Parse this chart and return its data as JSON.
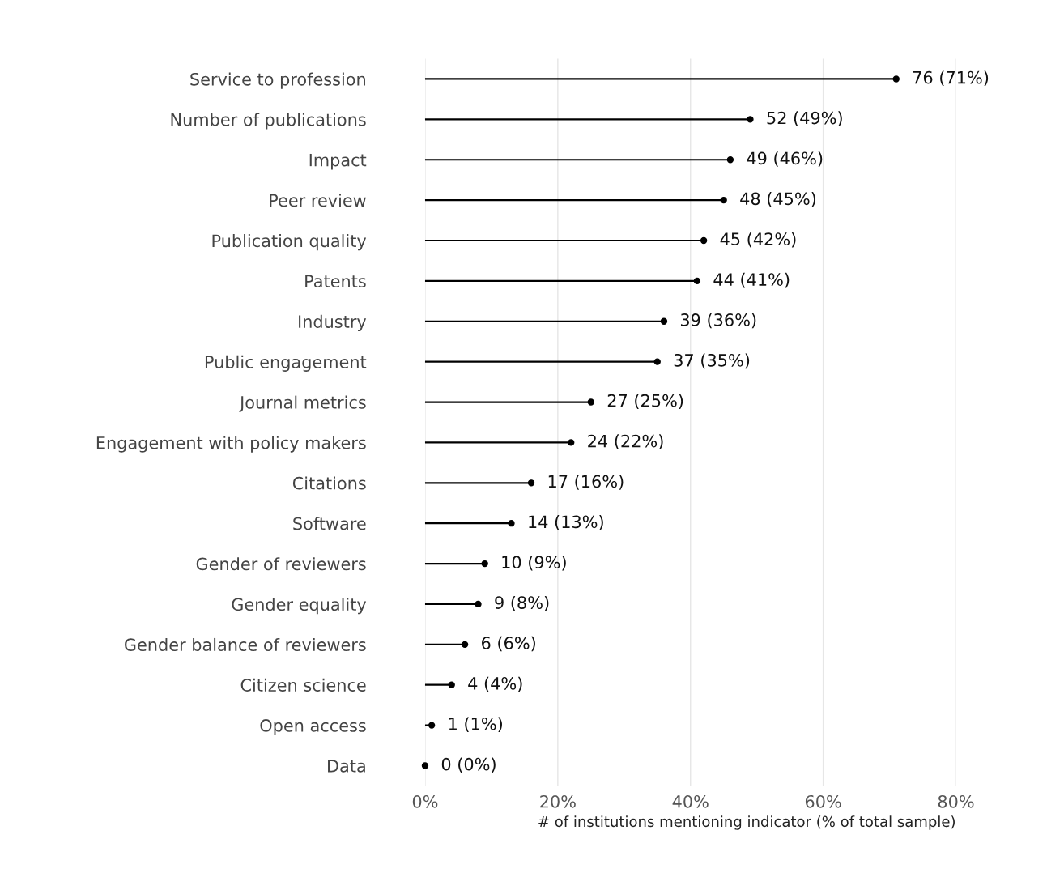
{
  "chart_data": {
    "type": "lollipop",
    "orientation": "horizontal",
    "xlabel": "# of institutions mentioning indicator (% of total sample)",
    "categories": [
      "Service to profession",
      "Number of publications",
      "Impact",
      "Peer review",
      "Publication quality",
      "Patents",
      "Industry",
      "Public engagement",
      "Journal metrics",
      "Engagement with policy makers",
      "Citations",
      "Software",
      "Gender of reviewers",
      "Gender equality",
      "Gender balance of reviewers",
      "Citizen science",
      "Open access",
      "Data"
    ],
    "values": [
      71,
      49,
      46,
      45,
      42,
      41,
      36,
      35,
      25,
      22,
      16,
      13,
      9,
      8,
      6,
      4,
      1,
      0
    ],
    "value_labels": [
      "76 (71%)",
      "52 (49%)",
      "49 (46%)",
      "48 (45%)",
      "45 (42%)",
      "44 (41%)",
      "39 (36%)",
      "37 (35%)",
      "27 (25%)",
      "24 (22%)",
      "17 (16%)",
      "14 (13%)",
      "10 (9%)",
      "9 (8%)",
      "6 (6%)",
      "4 (4%)",
      "1 (1%)",
      "0 (0%)"
    ],
    "color": "#000000",
    "xlim": [
      0,
      80
    ],
    "xticks": [
      {
        "value": 0,
        "label": "0%"
      },
      {
        "value": 20,
        "label": "20%"
      },
      {
        "value": 40,
        "label": "40%"
      },
      {
        "value": 60,
        "label": "60%"
      },
      {
        "value": 80,
        "label": "80%"
      }
    ],
    "grid": "x",
    "marker": "circle"
  }
}
